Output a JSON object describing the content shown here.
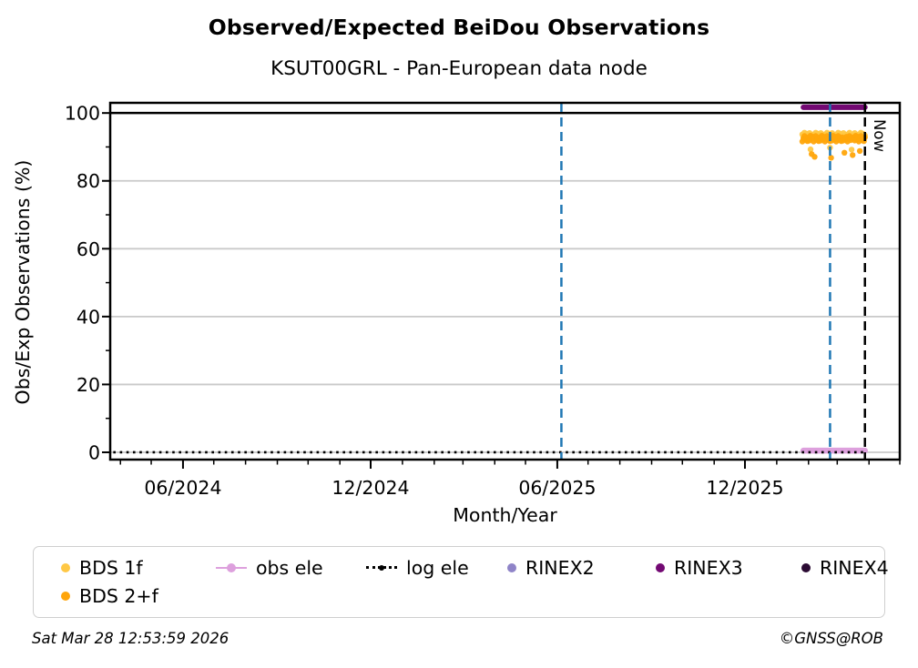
{
  "footer": {
    "timestamp": "Sat Mar 28 12:53:59 2026",
    "copyright": "©GNSS@ROB"
  },
  "legend": {
    "items": [
      {
        "label": "BDS 1f",
        "color": "#FFC845",
        "marker": "dot"
      },
      {
        "label": "obs ele",
        "color": "#DDA0DD",
        "marker": "dot-line"
      },
      {
        "label": "log ele",
        "color": "#000000",
        "marker": "dotted-line"
      },
      {
        "label": "RINEX2",
        "color": "#8F84C8",
        "marker": "dot"
      },
      {
        "label": "RINEX3",
        "color": "#730973",
        "marker": "dot"
      },
      {
        "label": "RINEX4",
        "color": "#2B0B33",
        "marker": "dot"
      },
      {
        "label": "BDS 2+f",
        "color": "#FFA50A",
        "marker": "dot"
      }
    ]
  },
  "chart_data": {
    "type": "scatter",
    "title": "Observed/Expected BeiDou Observations",
    "subtitle": "KSUT00GRL - Pan-European data node",
    "xlabel": "Month/Year",
    "ylabel": "Obs/Exp Observations (%)",
    "xlim": [
      "2024-03-22",
      "2026-05-01"
    ],
    "ylim": [
      -2.15,
      103
    ],
    "grid": "horizontal-major-lightgray",
    "grid_color": "#c9c9c9",
    "legend_position": "below",
    "x_major_ticks": [
      {
        "date": "2024-06-01",
        "label": "06/2024"
      },
      {
        "date": "2024-12-01",
        "label": "12/2024"
      },
      {
        "date": "2025-06-01",
        "label": "06/2025"
      },
      {
        "date": "2025-12-01",
        "label": "12/2025"
      }
    ],
    "x_minor_ticks": "monthly",
    "y_major_ticks": [
      0,
      20,
      40,
      60,
      80,
      100
    ],
    "y_minor_ticks": [
      10,
      30,
      50,
      70,
      90
    ],
    "reference_lines": {
      "hline_100": {
        "y": 100,
        "color": "#000000",
        "style": "solid"
      },
      "vlines": [
        {
          "date": "2025-06-05",
          "color": "#1f77b4",
          "style": "dashed"
        },
        {
          "date": "2026-02-22",
          "color": "#1f77b4",
          "style": "dashed"
        },
        {
          "date": "2026-03-28",
          "color": "#000000",
          "style": "dashed",
          "label": "Now"
        }
      ]
    },
    "series": [
      {
        "name": "BDS 1f",
        "type": "scatter",
        "color": "#FFC845",
        "start": "2026-01-26",
        "step_days": 1,
        "values": [
          93.7,
          92.8,
          94.2,
          93.1,
          93.9,
          92.5,
          93.4,
          94.1,
          89.3,
          93.6,
          92.6,
          93.7,
          92.8,
          94.2,
          93.1,
          93.9,
          92.5,
          93.4,
          94.1,
          92.9,
          93.6,
          92.6,
          93.7,
          92.8,
          94.2,
          93.1,
          93.9,
          89.8,
          93.4,
          94.1,
          92.9,
          93.6,
          92.6,
          93.7,
          92.8,
          94.2,
          93.1,
          93.9,
          92.5,
          93.4,
          94.1,
          92.9,
          93.6,
          92.6,
          93.7,
          92.8,
          94.2,
          93.1,
          89.2,
          92.5,
          93.4,
          94.1,
          92.9,
          93.6,
          92.6,
          93.7,
          92.8,
          94.2,
          93.1,
          93.9,
          92.5,
          93.4
        ]
      },
      {
        "name": "BDS 2+f",
        "type": "scatter",
        "color": "#FFA50A",
        "start": "2026-01-26",
        "step_days": 1,
        "values": [
          91.6,
          92.5,
          93.2,
          92.0,
          92.7,
          91.7,
          92.8,
          91.9,
          93.3,
          87.9,
          93.0,
          91.6,
          87.1,
          93.2,
          92.0,
          92.7,
          91.7,
          92.8,
          91.9,
          93.3,
          92.2,
          93.0,
          91.6,
          92.5,
          93.2,
          92.0,
          92.7,
          91.7,
          86.8,
          91.9,
          93.3,
          92.2,
          93.0,
          91.6,
          92.5,
          93.2,
          92.0,
          92.7,
          91.7,
          92.8,
          91.9,
          88.3,
          92.2,
          93.0,
          91.6,
          92.5,
          93.2,
          92.0,
          92.7,
          87.6,
          92.8,
          91.9,
          93.3,
          92.2,
          93.0,
          91.6,
          88.8,
          93.2,
          92.0,
          92.7,
          91.7,
          92.8
        ]
      },
      {
        "name": "obs ele",
        "type": "line",
        "color": "#DDA0DD",
        "width": 6.5,
        "start": "2026-01-27",
        "end": "2026-03-28",
        "value": 0.5
      },
      {
        "name": "log ele",
        "type": "dotted-line",
        "color": "#000000",
        "width": 2.6,
        "start": "2024-03-25",
        "end": "2026-03-28",
        "value": 0
      },
      {
        "name": "RINEX2",
        "type": "scatter",
        "color": "#8F84C8",
        "values": []
      },
      {
        "name": "RINEX3",
        "type": "line",
        "color": "#730973",
        "width": 6,
        "start": "2026-01-27",
        "end": "2026-03-28",
        "value": 101.7
      },
      {
        "name": "RINEX4",
        "type": "scatter",
        "color": "#2B0B33",
        "values": []
      }
    ]
  }
}
